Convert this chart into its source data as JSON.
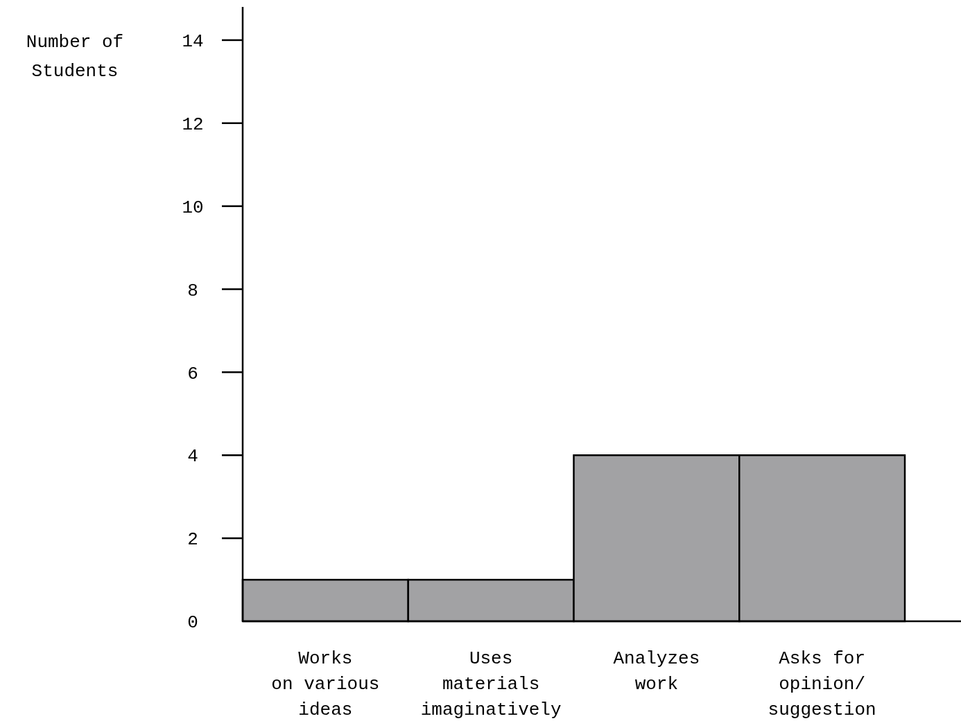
{
  "chart_data": {
    "type": "bar",
    "ylabel": "Number of\nStudents",
    "categories": [
      "Works\non various\nideas",
      "Uses\nmaterials\nimaginatively",
      "Analyzes\nwork",
      "Asks for\nopinion/\nsuggestion"
    ],
    "values": [
      1,
      1,
      4,
      4
    ],
    "color": "#a2a2a4",
    "ylim": [
      0,
      14.8
    ],
    "yticks": [
      0,
      2,
      4,
      6,
      8,
      10,
      12,
      14
    ]
  }
}
